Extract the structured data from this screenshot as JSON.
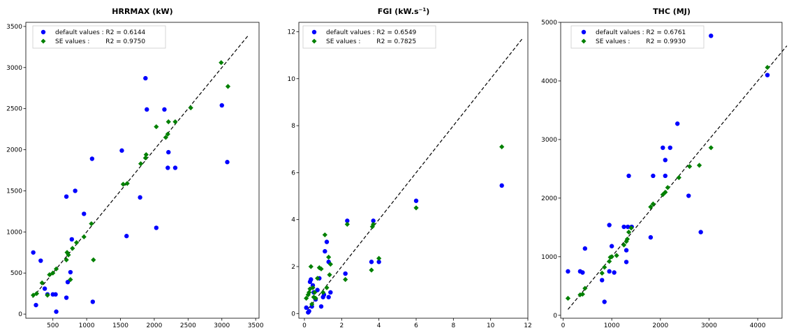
{
  "chart_data": [
    {
      "type": "scatter",
      "title": "HRRMAX (kW)",
      "xlim": [
        100,
        3550
      ],
      "ylim": [
        -50,
        3550
      ],
      "xticks": [
        500,
        1000,
        1500,
        2000,
        2500,
        3000,
        3500
      ],
      "yticks": [
        0,
        500,
        1000,
        1500,
        2000,
        2500,
        3000,
        3500
      ],
      "identity_line": [
        [
          200,
          200
        ],
        [
          3400,
          3400
        ]
      ],
      "legend_position": "top-left",
      "series": [
        {
          "name": "default values",
          "legend_label": "default values : R2 = 0.6144",
          "marker": "circle",
          "color": "#0000ff",
          "points": [
            [
              210,
              750
            ],
            [
              250,
              110
            ],
            [
              320,
              650
            ],
            [
              380,
              310
            ],
            [
              420,
              240
            ],
            [
              500,
              240
            ],
            [
              540,
              240
            ],
            [
              550,
              30
            ],
            [
              700,
              200
            ],
            [
              700,
              1430
            ],
            [
              720,
              390
            ],
            [
              760,
              510
            ],
            [
              780,
              910
            ],
            [
              830,
              1500
            ],
            [
              960,
              1220
            ],
            [
              1080,
              1890
            ],
            [
              1090,
              150
            ],
            [
              1520,
              1990
            ],
            [
              1590,
              950
            ],
            [
              1790,
              1420
            ],
            [
              1870,
              2870
            ],
            [
              1890,
              2490
            ],
            [
              2030,
              1050
            ],
            [
              2150,
              2490
            ],
            [
              2200,
              1780
            ],
            [
              2210,
              1970
            ],
            [
              2310,
              1780
            ],
            [
              3000,
              2540
            ],
            [
              3080,
              1850
            ]
          ]
        },
        {
          "name": "SE values",
          "legend_label": "SE values :        R2 = 0.9750",
          "marker": "diamond",
          "color": "#008000",
          "points": [
            [
              210,
              230
            ],
            [
              260,
              250
            ],
            [
              340,
              380
            ],
            [
              420,
              230
            ],
            [
              450,
              480
            ],
            [
              500,
              500
            ],
            [
              550,
              550
            ],
            [
              700,
              660
            ],
            [
              710,
              750
            ],
            [
              730,
              720
            ],
            [
              760,
              420
            ],
            [
              790,
              800
            ],
            [
              850,
              870
            ],
            [
              960,
              940
            ],
            [
              1070,
              1100
            ],
            [
              1100,
              660
            ],
            [
              1540,
              1580
            ],
            [
              1600,
              1590
            ],
            [
              1800,
              1830
            ],
            [
              1870,
              1900
            ],
            [
              1880,
              1940
            ],
            [
              2030,
              2280
            ],
            [
              2170,
              2150
            ],
            [
              2200,
              2190
            ],
            [
              2210,
              2340
            ],
            [
              2310,
              2340
            ],
            [
              2540,
              2510
            ],
            [
              2990,
              3060
            ],
            [
              3090,
              2770
            ]
          ]
        }
      ]
    },
    {
      "type": "scatter",
      "title": "FGI (kW.s",
      "title_sup": "−1",
      "title_end": ")",
      "xlim": [
        -0.3,
        12.0
      ],
      "ylim": [
        -0.2,
        12.4
      ],
      "xticks": [
        0,
        2,
        4,
        6,
        8,
        10,
        12
      ],
      "yticks": [
        0,
        2,
        4,
        6,
        8,
        10,
        12
      ],
      "identity_line": [
        [
          0.2,
          0.2
        ],
        [
          11.7,
          11.7
        ]
      ],
      "legend_position": "top-left",
      "series": [
        {
          "name": "default values",
          "legend_label": "default values : R2 = 0.6549",
          "marker": "circle",
          "color": "#0000ff",
          "points": [
            [
              0.1,
              0.25
            ],
            [
              0.2,
              0.05
            ],
            [
              0.25,
              0.1
            ],
            [
              0.3,
              1.35
            ],
            [
              0.35,
              1.45
            ],
            [
              0.4,
              0.3
            ],
            [
              0.45,
              1.2
            ],
            [
              0.5,
              0.9
            ],
            [
              0.6,
              0.6
            ],
            [
              0.7,
              1.0
            ],
            [
              0.8,
              1.5
            ],
            [
              0.9,
              0.3
            ],
            [
              1.0,
              0.7
            ],
            [
              1.05,
              0.8
            ],
            [
              1.1,
              2.65
            ],
            [
              1.2,
              3.05
            ],
            [
              1.3,
              0.7
            ],
            [
              1.3,
              2.2
            ],
            [
              1.4,
              0.9
            ],
            [
              2.2,
              1.7
            ],
            [
              2.3,
              3.95
            ],
            [
              3.6,
              2.2
            ],
            [
              3.7,
              3.95
            ],
            [
              4.0,
              2.2
            ],
            [
              6.0,
              4.8
            ],
            [
              10.6,
              5.45
            ]
          ]
        },
        {
          "name": "SE values",
          "legend_label": "SE values :        R2 = 0.7825",
          "marker": "diamond",
          "color": "#008000",
          "points": [
            [
              0.1,
              0.65
            ],
            [
              0.2,
              0.8
            ],
            [
              0.25,
              0.9
            ],
            [
              0.3,
              1.05
            ],
            [
              0.35,
              2.0
            ],
            [
              0.4,
              0.4
            ],
            [
              0.45,
              1.1
            ],
            [
              0.5,
              0.7
            ],
            [
              0.55,
              0.9
            ],
            [
              0.6,
              0.65
            ],
            [
              0.7,
              1.5
            ],
            [
              0.8,
              1.95
            ],
            [
              0.9,
              1.9
            ],
            [
              1.0,
              0.9
            ],
            [
              1.1,
              3.35
            ],
            [
              1.2,
              1.1
            ],
            [
              1.3,
              2.4
            ],
            [
              1.35,
              1.65
            ],
            [
              1.4,
              2.1
            ],
            [
              2.2,
              1.45
            ],
            [
              2.3,
              3.8
            ],
            [
              3.6,
              1.85
            ],
            [
              3.65,
              3.7
            ],
            [
              3.7,
              3.8
            ],
            [
              4.0,
              2.35
            ],
            [
              6.0,
              4.5
            ],
            [
              10.6,
              7.1
            ]
          ]
        }
      ]
    },
    {
      "type": "scatter",
      "title": "THC (MJ)",
      "xlim": [
        -50,
        4500
      ],
      "ylim": [
        -50,
        5000
      ],
      "xticks": [
        0,
        1000,
        2000,
        3000,
        4000
      ],
      "yticks": [
        0,
        1000,
        2000,
        3000,
        4000,
        5000
      ],
      "identity_line": [
        [
          100,
          100
        ],
        [
          4600,
          4600
        ]
      ],
      "legend_position": "top-left",
      "series": [
        {
          "name": "default values",
          "legend_label": "default values : R2 = 0.6761",
          "marker": "circle",
          "color": "#0000ff",
          "points": [
            [
              100,
              750
            ],
            [
              350,
              750
            ],
            [
              400,
              730
            ],
            [
              450,
              1140
            ],
            [
              800,
              600
            ],
            [
              850,
              230
            ],
            [
              950,
              750
            ],
            [
              950,
              1540
            ],
            [
              1000,
              1180
            ],
            [
              1050,
              730
            ],
            [
              1250,
              1510
            ],
            [
              1300,
              910
            ],
            [
              1300,
              1110
            ],
            [
              1330,
              1510
            ],
            [
              1350,
              2380
            ],
            [
              1410,
              1510
            ],
            [
              1800,
              1330
            ],
            [
              1850,
              2380
            ],
            [
              2050,
              2860
            ],
            [
              2100,
              2380
            ],
            [
              2100,
              2650
            ],
            [
              2200,
              2860
            ],
            [
              2350,
              3270
            ],
            [
              2580,
              2040
            ],
            [
              2830,
              1420
            ],
            [
              3040,
              4770
            ],
            [
              4200,
              4100
            ]
          ]
        },
        {
          "name": "SE values",
          "legend_label": "SE values :        R2 = 0.9930",
          "marker": "diamond",
          "color": "#008000",
          "points": [
            [
              100,
              290
            ],
            [
              350,
              350
            ],
            [
              400,
              360
            ],
            [
              450,
              460
            ],
            [
              800,
              720
            ],
            [
              850,
              820
            ],
            [
              950,
              920
            ],
            [
              970,
              990
            ],
            [
              1000,
              1000
            ],
            [
              1100,
              1020
            ],
            [
              1250,
              1200
            ],
            [
              1300,
              1260
            ],
            [
              1320,
              1300
            ],
            [
              1350,
              1420
            ],
            [
              1400,
              1490
            ],
            [
              1800,
              1850
            ],
            [
              1850,
              1900
            ],
            [
              2050,
              2060
            ],
            [
              2100,
              2100
            ],
            [
              2150,
              2180
            ],
            [
              2380,
              2350
            ],
            [
              2600,
              2540
            ],
            [
              2800,
              2560
            ],
            [
              3040,
              2860
            ],
            [
              4200,
              4230
            ]
          ]
        }
      ]
    }
  ]
}
